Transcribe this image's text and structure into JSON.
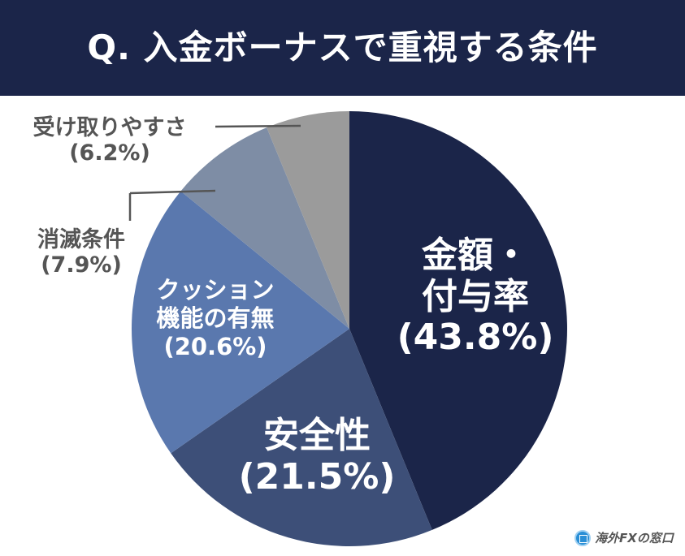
{
  "chart_data": {
    "type": "pie",
    "title": "Q. 入金ボーナスで重視する条件",
    "start": "top",
    "direction": "clockwise",
    "slices": [
      {
        "label": "金額・付与率",
        "value": 43.8,
        "display": "(43.8%)",
        "color": "#1b2549"
      },
      {
        "label": "安全性",
        "value": 21.5,
        "display": "(21.5%)",
        "color": "#3d4f78"
      },
      {
        "label": "クッション機能の有無",
        "value": 20.6,
        "display": "(20.6%)",
        "color": "#5a78ae"
      },
      {
        "label": "消滅条件",
        "value": 7.9,
        "display": "(7.9%)",
        "color": "#7e8da5"
      },
      {
        "label": "受け取りやすさ",
        "value": 6.2,
        "display": "(6.2%)",
        "color": "#9b9b9b"
      }
    ]
  },
  "labels": {
    "s0_l1": "金額・",
    "s0_l2": "付与率",
    "s2_l1": "クッション",
    "s2_l2": "機能の有無"
  },
  "logo": {
    "text": "海外FXの窓口"
  }
}
